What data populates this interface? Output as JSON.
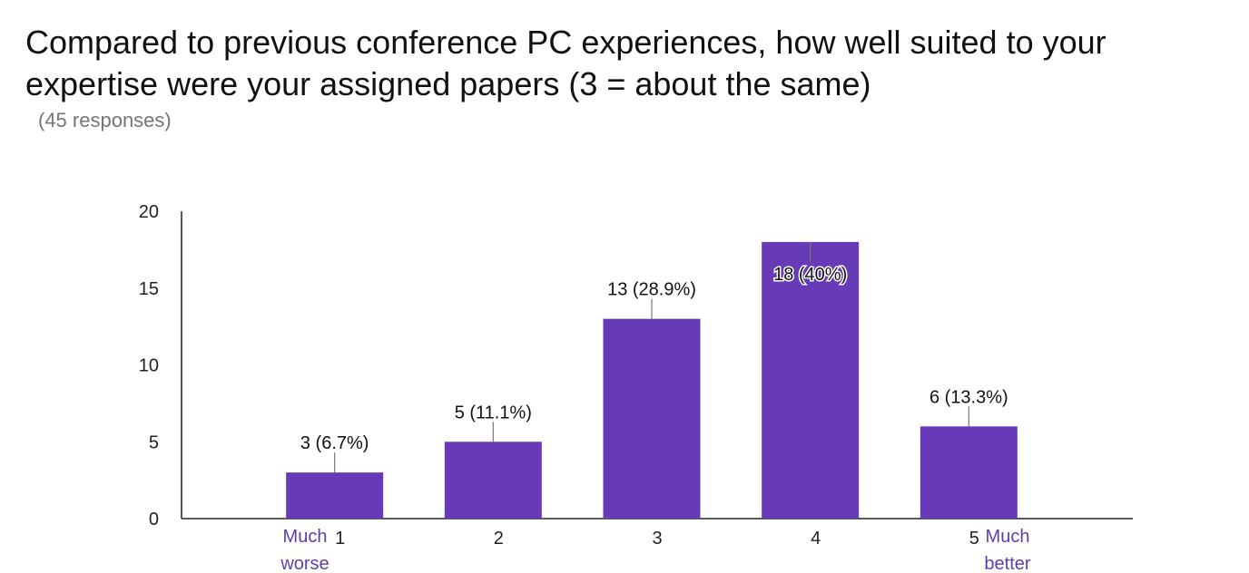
{
  "title": "Compared to previous conference PC experiences, how well suited to your expertise were your assigned papers (3 = about the same)",
  "subtitle": "(45 responses)",
  "colors": {
    "bar": "#673ab7",
    "annotation": "#5b3fb0"
  },
  "annotations": {
    "low": "Much worse",
    "high": "Much better"
  },
  "chart_data": {
    "type": "bar",
    "categories": [
      "1",
      "2",
      "3",
      "4",
      "5"
    ],
    "values": [
      3,
      5,
      13,
      18,
      6
    ],
    "data_labels": [
      "3 (6.7%)",
      "5 (11.1%)",
      "13 (28.9%)",
      "18 (40%)",
      "6 (13.3%)"
    ],
    "yticks": [
      "0",
      "5",
      "10",
      "15",
      "20"
    ],
    "ylim": [
      0,
      20
    ],
    "grid": false,
    "legend": "none"
  }
}
